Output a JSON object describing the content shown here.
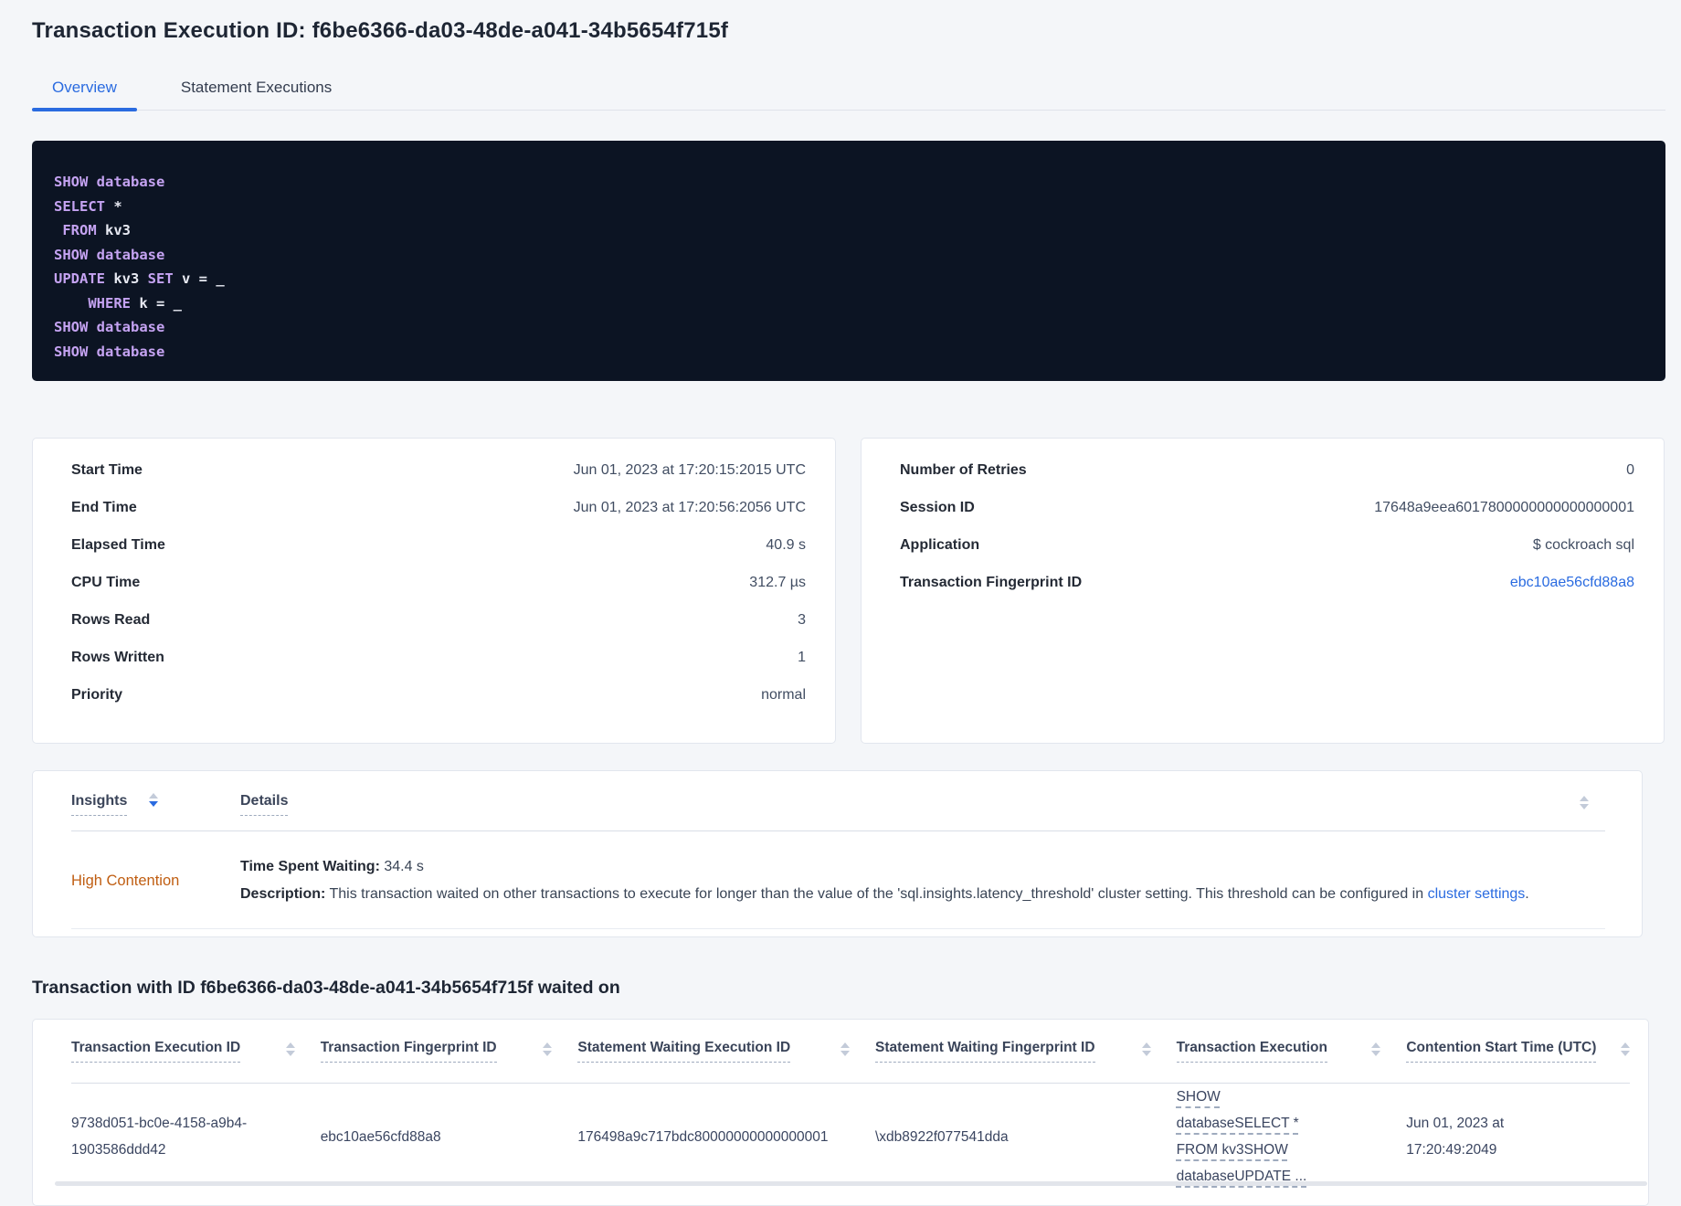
{
  "page": {
    "title": "Transaction Execution ID: f6be6366-da03-48de-a041-34b5654f715f",
    "waited_heading": "Transaction with ID f6be6366-da03-48de-a041-34b5654f715f waited on"
  },
  "tabs": [
    {
      "label": "Overview",
      "active": true
    },
    {
      "label": "Statement Executions",
      "active": false
    }
  ],
  "sql": {
    "lines": [
      {
        "segments": [
          {
            "text": "SHOW database",
            "type": "kw"
          }
        ]
      },
      {
        "segments": [
          {
            "text": "SELECT",
            "type": "kw"
          },
          {
            "text": " *",
            "type": "plain"
          }
        ]
      },
      {
        "segments": [
          {
            "text": " FROM",
            "type": "kw"
          },
          {
            "text": " kv3",
            "type": "plain"
          }
        ]
      },
      {
        "segments": [
          {
            "text": "SHOW database",
            "type": "kw"
          }
        ]
      },
      {
        "segments": [
          {
            "text": "UPDATE",
            "type": "kw"
          },
          {
            "text": " kv3 ",
            "type": "plain"
          },
          {
            "text": "SET",
            "type": "kw"
          },
          {
            "text": " v = _",
            "type": "plain"
          }
        ]
      },
      {
        "segments": [
          {
            "text": "    WHERE",
            "type": "kw"
          },
          {
            "text": " k = _",
            "type": "plain"
          }
        ]
      },
      {
        "segments": [
          {
            "text": "SHOW database",
            "type": "kw"
          }
        ]
      },
      {
        "segments": [
          {
            "text": "SHOW database",
            "type": "kw"
          }
        ]
      }
    ]
  },
  "summary_left": {
    "rows": [
      {
        "label": "Start Time",
        "value": "Jun 01, 2023 at 17:20:15:2015 UTC"
      },
      {
        "label": "End Time",
        "value": "Jun 01, 2023 at 17:20:56:2056 UTC"
      },
      {
        "label": "Elapsed Time",
        "value": "40.9 s"
      },
      {
        "label": "CPU Time",
        "value": "312.7 µs"
      },
      {
        "label": "Rows Read",
        "value": "3"
      },
      {
        "label": "Rows Written",
        "value": "1"
      },
      {
        "label": "Priority",
        "value": "normal"
      }
    ]
  },
  "summary_right": {
    "rows": [
      {
        "label": "Number of Retries",
        "value": "0"
      },
      {
        "label": "Session ID",
        "value": "17648a9eea6017800000000000000001"
      },
      {
        "label": "Application",
        "value": "$ cockroach sql"
      },
      {
        "label": "Transaction Fingerprint ID",
        "value": "ebc10ae56cfd88a8",
        "link": true
      }
    ]
  },
  "insights": {
    "columns": [
      {
        "label": "Insights"
      },
      {
        "label": "Details"
      }
    ],
    "row": {
      "insight": "High Contention",
      "time_label": "Time Spent Waiting:",
      "time_value": "34.4 s",
      "description_label": "Description:",
      "description_text": "This transaction waited on other transactions to execute for longer than the value of the 'sql.insights.latency_threshold' cluster setting. This threshold can be configured in",
      "description_link": "cluster settings",
      "description_suffix": "."
    }
  },
  "waited_table": {
    "columns": [
      {
        "label": "Transaction Execution ID"
      },
      {
        "label": "Transaction Fingerprint ID"
      },
      {
        "label": "Statement Waiting Execution ID"
      },
      {
        "label": "Statement Waiting Fingerprint ID"
      },
      {
        "label": "Transaction Execution"
      },
      {
        "label": "Contention Start Time (UTC)"
      }
    ],
    "rows": [
      {
        "transaction_execution_id": "9738d051-bc0e-4158-a9b4-1903586ddd42",
        "transaction_fingerprint_id": "ebc10ae56cfd88a8",
        "statement_waiting_execution_id": "176498a9c717bdc80000000000000001",
        "statement_waiting_fingerprint_id": "\\xdb8922f077541dda",
        "transaction_execution": "SHOW databaseSELECT * FROM kv3SHOW databaseUPDATE ...",
        "contention_start_time": "Jun 01, 2023 at 17:20:49:2049"
      }
    ]
  },
  "colors": {
    "accent_blue": "#2a6be0",
    "high_contention_orange": "#c05e12",
    "sql_keyword_purple": "#c5a3f2",
    "sql_plain": "#e7e9f2",
    "sql_background": "#0c1423",
    "page_background": "#f4f6f9",
    "heading_text": "#1e2634"
  }
}
